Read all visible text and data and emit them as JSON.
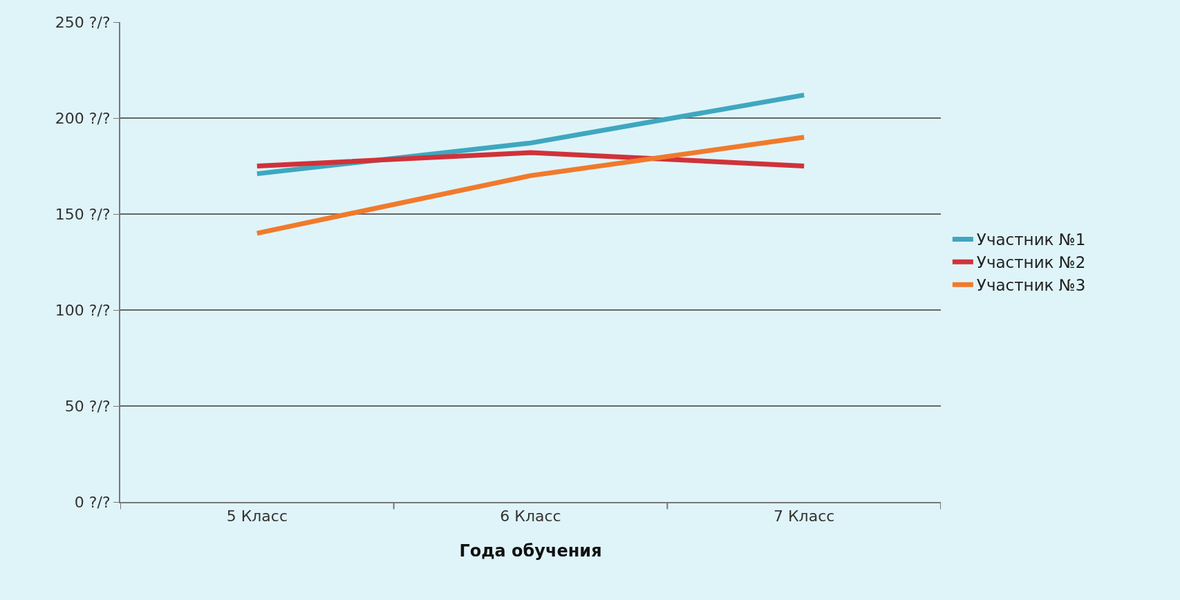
{
  "chart_data": {
    "type": "line",
    "xlabel": "Года обучения",
    "categories": [
      "5 Класс",
      "6 Класс",
      "7 Класс"
    ],
    "series": [
      {
        "name": "Участник №1",
        "color": "#3fa7bf",
        "values": [
          171,
          187,
          212
        ]
      },
      {
        "name": "Участник №2",
        "color": "#d0323a",
        "values": [
          175,
          182,
          175
        ]
      },
      {
        "name": "Участник №3",
        "color": "#f07a2c",
        "values": [
          140,
          170,
          190
        ]
      }
    ],
    "ylim": [
      0,
      250
    ],
    "yticks": [
      {
        "value": 0,
        "label": "0 ?/?"
      },
      {
        "value": 50,
        "label": "50 ?/?"
      },
      {
        "value": 100,
        "label": "100 ?/?"
      },
      {
        "value": 150,
        "label": "150 ?/?"
      },
      {
        "value": 200,
        "label": "200 ?/?"
      },
      {
        "value": 250,
        "label": "250 ?/?"
      }
    ],
    "grid": "y",
    "legend": "right",
    "marker": "none",
    "line_style": "solid"
  }
}
